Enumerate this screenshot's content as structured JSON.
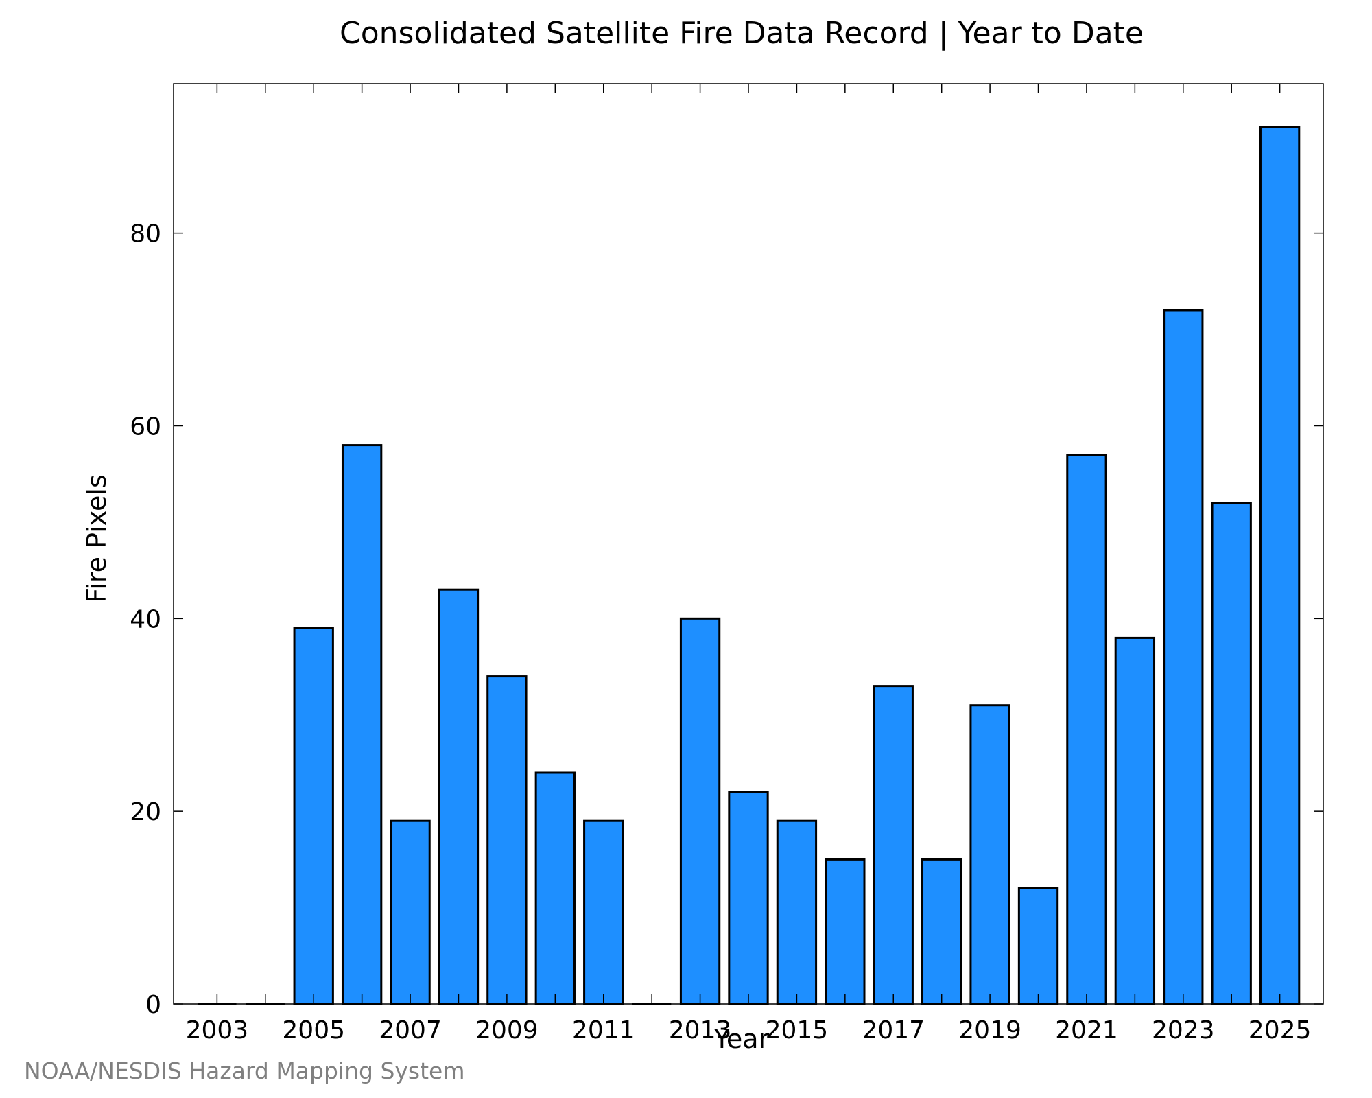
{
  "chart_data": {
    "type": "bar",
    "title": "Consolidated Satellite Fire Data Record | Year to Date",
    "xlabel": "Year",
    "ylabel": "Fire Pixels",
    "categories": [
      2003,
      2004,
      2005,
      2006,
      2007,
      2008,
      2009,
      2010,
      2011,
      2012,
      2013,
      2014,
      2015,
      2016,
      2017,
      2018,
      2019,
      2020,
      2021,
      2022,
      2023,
      2024,
      2025
    ],
    "values": [
      0,
      0,
      39,
      58,
      19,
      43,
      34,
      24,
      19,
      0,
      40,
      22,
      19,
      15,
      33,
      15,
      31,
      12,
      57,
      38,
      72,
      52,
      91
    ],
    "x_ticks": [
      "2003",
      "2005",
      "2007",
      "2009",
      "2011",
      "2013",
      "2015",
      "2017",
      "2019",
      "2021",
      "2023",
      "2025"
    ],
    "y_ticks": [
      "0",
      "20",
      "40",
      "60",
      "80"
    ],
    "ylim": [
      0,
      95.5
    ],
    "grid": false,
    "legend": "none",
    "bar_color": "#1E8FFF",
    "edge_color": "#000000"
  },
  "credit": "NOAA/NESDIS Hazard Mapping System"
}
